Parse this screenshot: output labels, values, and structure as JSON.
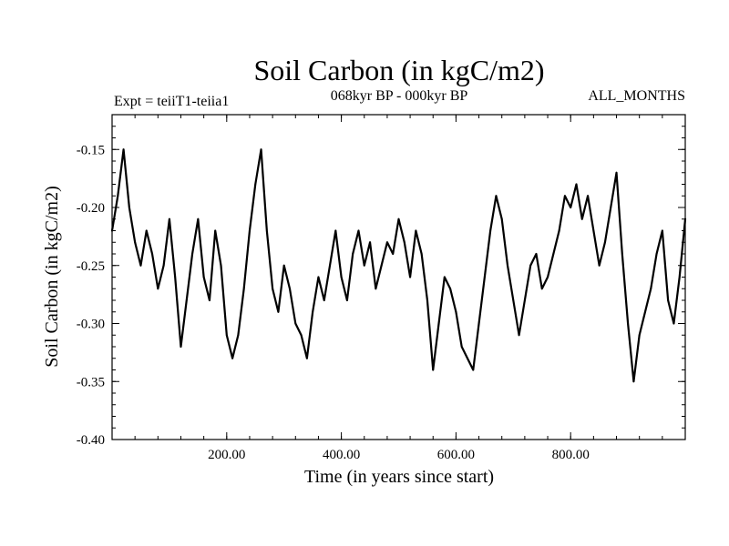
{
  "chart_data": {
    "type": "line",
    "title": "Soil Carbon (in kgC/m2)",
    "subtitle_left": "Expt = teiiT1-teiia1",
    "subtitle_center": "068kyr BP - 000kyr BP",
    "subtitle_right": "ALL_MONTHS",
    "xlabel": "Time (in years since start)",
    "ylabel": "Soil Carbon (in kgC/m2)",
    "xlim": [
      0,
      1000
    ],
    "ylim": [
      -0.4,
      -0.12
    ],
    "xticks": [
      200,
      400,
      600,
      800
    ],
    "xtick_labels": [
      "200.00",
      "400.00",
      "600.00",
      "800.00"
    ],
    "yticks": [
      -0.15,
      -0.2,
      -0.25,
      -0.3,
      -0.35,
      -0.4
    ],
    "ytick_labels": [
      "-0.15",
      "-0.20",
      "-0.25",
      "-0.30",
      "-0.35",
      "-0.40"
    ],
    "grid": false,
    "line_color": "#000000",
    "series": [
      {
        "x": [
          0,
          10,
          20,
          30,
          40,
          50,
          60,
          70,
          80,
          90,
          100,
          110,
          120,
          130,
          140,
          150,
          160,
          170,
          180,
          190,
          200,
          210,
          220,
          230,
          240,
          250,
          260,
          270,
          280,
          290,
          300,
          310,
          320,
          330,
          340,
          350,
          360,
          370,
          380,
          390,
          400,
          410,
          420,
          430,
          440,
          450,
          460,
          470,
          480,
          490,
          500,
          510,
          520,
          530,
          540,
          550,
          560,
          570,
          580,
          590,
          600,
          610,
          620,
          630,
          640,
          650,
          660,
          670,
          680,
          690,
          700,
          710,
          720,
          730,
          740,
          750,
          760,
          770,
          780,
          790,
          800,
          810,
          820,
          830,
          840,
          850,
          860,
          870,
          880,
          890,
          900,
          910,
          920,
          930,
          940,
          950,
          960,
          970,
          980,
          990,
          1000
        ],
        "values": [
          -0.22,
          -0.19,
          -0.15,
          -0.2,
          -0.23,
          -0.25,
          -0.22,
          -0.24,
          -0.27,
          -0.25,
          -0.21,
          -0.26,
          -0.32,
          -0.28,
          -0.24,
          -0.21,
          -0.26,
          -0.28,
          -0.22,
          -0.25,
          -0.31,
          -0.33,
          -0.31,
          -0.27,
          -0.22,
          -0.18,
          -0.15,
          -0.22,
          -0.27,
          -0.29,
          -0.25,
          -0.27,
          -0.3,
          -0.31,
          -0.33,
          -0.29,
          -0.26,
          -0.28,
          -0.25,
          -0.22,
          -0.26,
          -0.28,
          -0.24,
          -0.22,
          -0.25,
          -0.23,
          -0.27,
          -0.25,
          -0.23,
          -0.24,
          -0.21,
          -0.23,
          -0.26,
          -0.22,
          -0.24,
          -0.28,
          -0.34,
          -0.3,
          -0.26,
          -0.27,
          -0.29,
          -0.32,
          -0.33,
          -0.34,
          -0.3,
          -0.26,
          -0.22,
          -0.19,
          -0.21,
          -0.25,
          -0.28,
          -0.31,
          -0.28,
          -0.25,
          -0.24,
          -0.27,
          -0.26,
          -0.24,
          -0.22,
          -0.19,
          -0.2,
          -0.18,
          -0.21,
          -0.19,
          -0.22,
          -0.25,
          -0.23,
          -0.2,
          -0.17,
          -0.24,
          -0.3,
          -0.35,
          -0.31,
          -0.29,
          -0.27,
          -0.24,
          -0.22,
          -0.28,
          -0.3,
          -0.26,
          -0.21
        ]
      }
    ]
  }
}
